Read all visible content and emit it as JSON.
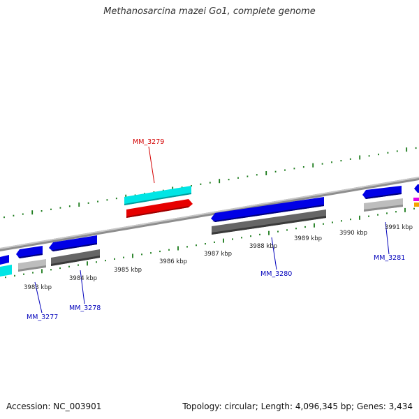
{
  "title": "Methanosarcina mazei Go1, complete genome",
  "footer": {
    "accession": "Accession: NC_003901",
    "summary": "Topology: circular; Length: 4,096,345 bp; Genes: 3,434"
  },
  "colors": {
    "background": "#ffffff",
    "backbone": "#8a8a8a",
    "tick_green": "#1a7a1a",
    "callout_red": "#d40000",
    "callout_blue": "#0000bb",
    "forward_cds": "#0000e6",
    "reverse_cds": "#e60000",
    "gene_cyan": "#00e5e5",
    "gene_gray": "#bdbdbd",
    "gene_dark_gray": "#666666",
    "gene_magenta": "#e600e6",
    "gene_orange": "#f5a300"
  },
  "ticks": [
    {
      "label": "3983 kbp"
    },
    {
      "label": "3984 kbp"
    },
    {
      "label": "3985 kbp"
    },
    {
      "label": "3986 kbp"
    },
    {
      "label": "3987 kbp"
    },
    {
      "label": "3988 kbp"
    },
    {
      "label": "3989 kbp"
    },
    {
      "label": "3990 kbp"
    },
    {
      "label": "3991 kbp"
    }
  ],
  "genes": [
    {
      "label": "MM_3277",
      "color": "#0000bb"
    },
    {
      "label": "MM_3278",
      "color": "#0000bb"
    },
    {
      "label": "MM_3279",
      "color": "#d40000"
    },
    {
      "label": "MM_3280",
      "color": "#0000bb"
    },
    {
      "label": "MM_3281",
      "color": "#0000bb"
    }
  ]
}
